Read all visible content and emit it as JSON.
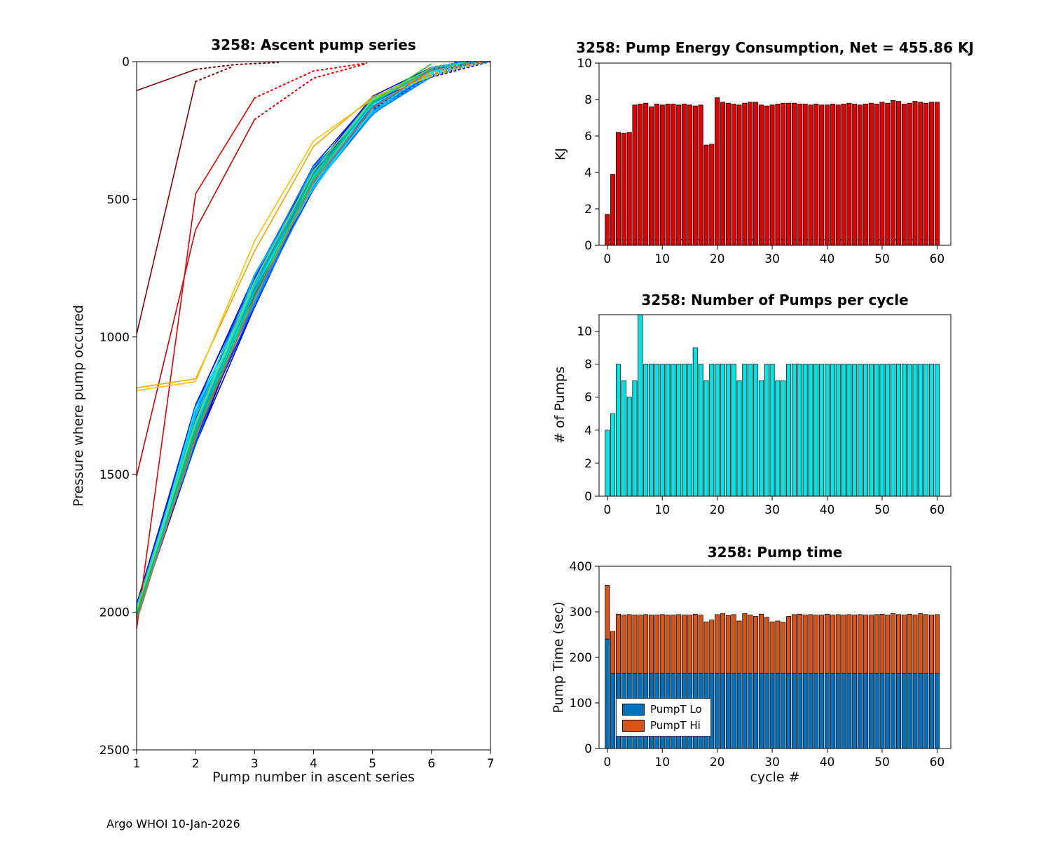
{
  "page": {
    "footer": "Argo WHOI 10-Jan-2026",
    "background": "#ffffff"
  },
  "chart_data": [
    {
      "id": "ascent",
      "type": "line",
      "title": "3258: Ascent pump series",
      "xlabel": "Pump number in ascent series",
      "ylabel": "Pressure where pump occured",
      "xlim": [
        1,
        7
      ],
      "ylim": [
        0,
        2500
      ],
      "y_reversed": true,
      "xticks": [
        1,
        2,
        3,
        4,
        5,
        6,
        7
      ],
      "yticks": [
        0,
        500,
        1000,
        1500,
        2000,
        2500
      ],
      "cluster": {
        "count": 46,
        "seed": 7,
        "pumps": [
          1,
          2,
          3,
          4,
          5,
          6,
          7
        ],
        "base_pressures": [
          2005,
          1320,
          830,
          420,
          160,
          38,
          0
        ],
        "jitter": [
          35,
          75,
          65,
          45,
          35,
          18,
          0
        ],
        "colormap": "jet",
        "color_t_range": [
          0.02,
          0.36
        ]
      },
      "outlier_lines": [
        {
          "color": "#7a0000",
          "solid": [
            [
              1,
              105
            ],
            [
              2,
              28
            ]
          ],
          "dotted": [
            [
              2.7,
              10
            ],
            [
              3.4,
              3
            ]
          ]
        },
        {
          "color": "#8c0000",
          "solid": [
            [
              1,
              990
            ],
            [
              2,
              72
            ]
          ],
          "dotted": [
            [
              2.6,
              20
            ]
          ]
        },
        {
          "color": "#d40000",
          "solid": [
            [
              1,
              1505
            ],
            [
              2,
              610
            ],
            [
              3,
              210
            ]
          ],
          "dotted": [
            [
              4,
              60
            ],
            [
              4.9,
              7
            ]
          ]
        },
        {
          "color": "#ef0000",
          "solid": [
            [
              1,
              2060
            ],
            [
              2,
              480
            ],
            [
              3,
              132
            ]
          ],
          "dotted": [
            [
              4,
              34
            ],
            [
              4.9,
              5
            ]
          ]
        },
        {
          "color": "#f0a500",
          "solid": [
            [
              1,
              1185
            ],
            [
              2,
              1152
            ],
            [
              3,
              688
            ],
            [
              4,
              308
            ],
            [
              5,
              128
            ],
            [
              6,
              44
            ]
          ],
          "dotted": [
            [
              6.8,
              0
            ]
          ]
        },
        {
          "color": "#ffbf00",
          "solid": [
            [
              1,
              1195
            ],
            [
              2,
              1162
            ],
            [
              3,
              652
            ],
            [
              4,
              288
            ],
            [
              5,
              136
            ],
            [
              6,
              52
            ]
          ],
          "dotted": [
            [
              6.9,
              0
            ]
          ]
        },
        {
          "color": "#e8610a",
          "solid": [
            [
              1,
              2028
            ],
            [
              2,
              1362
            ],
            [
              3,
              858
            ],
            [
              4,
              436
            ],
            [
              5,
              168
            ],
            [
              6,
              30
            ]
          ],
          "dotted": [
            [
              6.9,
              0
            ]
          ]
        },
        {
          "color": "#19c819",
          "solid": [
            [
              1,
              2006
            ],
            [
              2,
              1344
            ],
            [
              3,
              842
            ],
            [
              4,
              424
            ],
            [
              5,
              146
            ],
            [
              6,
              8
            ]
          ],
          "dotted": []
        },
        {
          "color": "#7fdd1e",
          "solid": [
            [
              1,
              1992
            ],
            [
              2,
              1308
            ],
            [
              3,
              798
            ],
            [
              4,
              398
            ],
            [
              5,
              138
            ],
            [
              6,
              22
            ]
          ],
          "dotted": [
            [
              6.7,
              0
            ]
          ]
        },
        {
          "color": "#00b3a0",
          "solid": [
            [
              1,
              2015
            ],
            [
              2,
              1330
            ],
            [
              3,
              820
            ],
            [
              4,
              410
            ],
            [
              5,
              150
            ],
            [
              6,
              26
            ]
          ],
          "dotted": [
            [
              6.8,
              0
            ]
          ]
        }
      ]
    },
    {
      "id": "energy",
      "type": "bar",
      "title": "3258: Pump Energy Consumption,  Net = 455.86 KJ",
      "net_kj": 455.86,
      "ylabel": "KJ",
      "xlim": [
        -1.5,
        62.5
      ],
      "ylim": [
        0,
        10
      ],
      "xticks": [
        0,
        10,
        20,
        30,
        40,
        50,
        60
      ],
      "yticks": [
        0,
        2,
        4,
        6,
        8,
        10
      ],
      "bar_color": "#e50000",
      "edge_color": "#000000",
      "x_start": 0,
      "dotted_line_y": 0.3,
      "values": [
        1.7,
        3.9,
        6.2,
        6.15,
        6.2,
        7.7,
        7.75,
        7.8,
        7.6,
        7.75,
        7.7,
        7.75,
        7.75,
        7.7,
        7.75,
        7.7,
        7.65,
        7.7,
        5.5,
        5.55,
        8.1,
        7.85,
        7.8,
        7.75,
        7.7,
        7.8,
        7.85,
        7.85,
        7.7,
        7.65,
        7.7,
        7.75,
        7.8,
        7.8,
        7.8,
        7.75,
        7.75,
        7.7,
        7.75,
        7.7,
        7.7,
        7.75,
        7.7,
        7.75,
        7.8,
        7.75,
        7.7,
        7.75,
        7.8,
        7.75,
        7.85,
        7.8,
        7.95,
        7.9,
        7.75,
        7.8,
        7.9,
        7.85,
        7.8,
        7.85,
        7.85
      ]
    },
    {
      "id": "pumps",
      "type": "bar",
      "title": "3258: Number of Pumps per cycle",
      "ylabel": "# of Pumps",
      "xlim": [
        -1.5,
        62.5
      ],
      "ylim": [
        0,
        11
      ],
      "xticks": [
        0,
        10,
        20,
        30,
        40,
        50,
        60
      ],
      "yticks": [
        0,
        2,
        4,
        6,
        8,
        10
      ],
      "bar_color": "#00e5e5",
      "edge_color": "#000000",
      "x_start": 0,
      "values": [
        4,
        5,
        8,
        7,
        6,
        7,
        11,
        8,
        8,
        8,
        8,
        8,
        8,
        8,
        8,
        8,
        9,
        8,
        7,
        8,
        8,
        8,
        8,
        8,
        7,
        8,
        8,
        8,
        7,
        8,
        8,
        7,
        7,
        8,
        8,
        8,
        8,
        8,
        8,
        8,
        8,
        8,
        8,
        8,
        8,
        8,
        8,
        8,
        8,
        8,
        8,
        8,
        8,
        8,
        8,
        8,
        8,
        8,
        8,
        8,
        8
      ]
    },
    {
      "id": "time",
      "type": "bar-stacked",
      "title": "3258: Pump time",
      "xlabel": "cycle #",
      "ylabel": "Pump Time (sec)",
      "xlim": [
        -1.5,
        62.5
      ],
      "ylim": [
        0,
        400
      ],
      "xticks": [
        0,
        10,
        20,
        30,
        40,
        50,
        60
      ],
      "yticks": [
        0,
        100,
        200,
        300,
        400
      ],
      "edge_color": "#000000",
      "x_start": 0,
      "series": [
        {
          "name": "PumpT Lo",
          "color": "#0072BD",
          "values": [
            240,
            165,
            165,
            165,
            165,
            165,
            165,
            165,
            165,
            165,
            165,
            165,
            165,
            165,
            165,
            165,
            165,
            165,
            165,
            165,
            165,
            165,
            165,
            165,
            165,
            165,
            165,
            165,
            165,
            165,
            165,
            165,
            165,
            165,
            165,
            165,
            165,
            165,
            165,
            165,
            165,
            165,
            165,
            165,
            165,
            165,
            165,
            165,
            165,
            165,
            165,
            165,
            165,
            165,
            165,
            165,
            165,
            165,
            165,
            165,
            165
          ]
        },
        {
          "name": "PumpT Hi",
          "color": "#D95319",
          "values": [
            118,
            92,
            130,
            128,
            129,
            128,
            128,
            129,
            128,
            128,
            129,
            128,
            128,
            129,
            128,
            128,
            130,
            128,
            113,
            117,
            129,
            131,
            127,
            129,
            115,
            131,
            128,
            125,
            130,
            123,
            113,
            115,
            112,
            125,
            129,
            130,
            128,
            129,
            128,
            128,
            130,
            128,
            129,
            128,
            129,
            128,
            129,
            128,
            128,
            129,
            130,
            128,
            131,
            129,
            128,
            130,
            128,
            131,
            129,
            128,
            129
          ]
        }
      ],
      "legend": {
        "position": "southwest",
        "entries": [
          "PumpT Lo",
          "PumpT Hi"
        ]
      }
    }
  ]
}
